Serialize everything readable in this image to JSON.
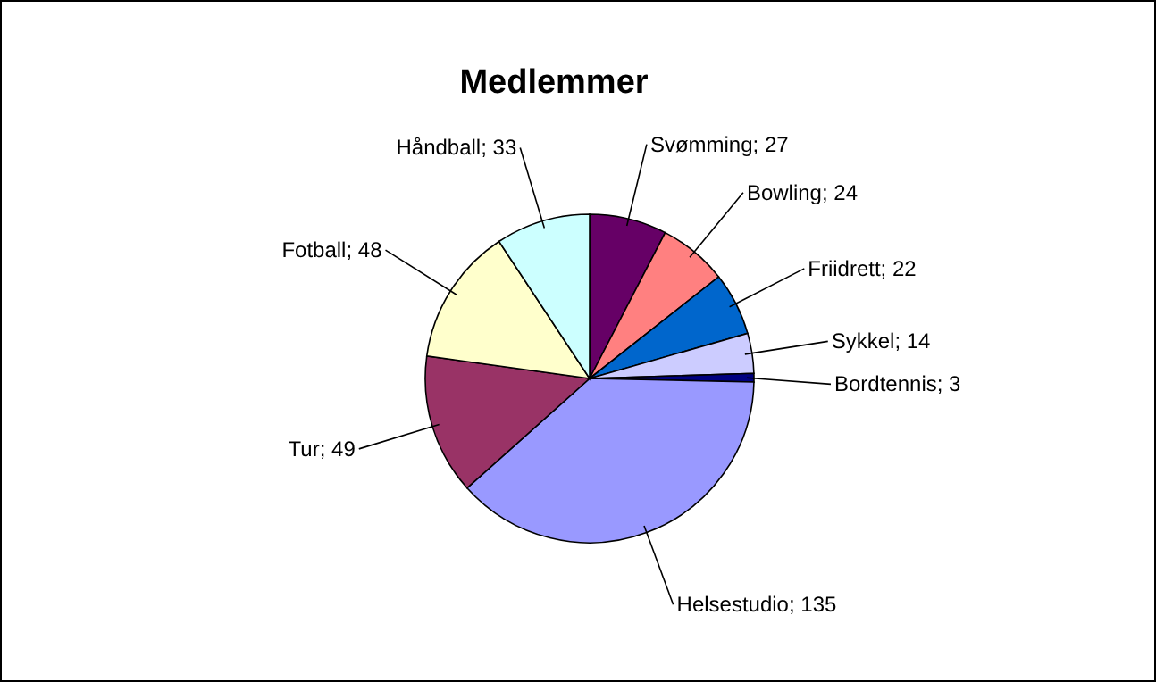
{
  "chart_data": {
    "type": "pie",
    "title": "Medlemmer",
    "categories": [
      "Svømming; 27",
      "Bowling; 24",
      "Friidrett; 22",
      "Sykkel; 14",
      "Bordtennis; 3",
      "Helsestudio; 135",
      "Tur; 49",
      "Fotball; 48",
      "Håndball; 33"
    ],
    "values": [
      27,
      24,
      22,
      14,
      3,
      135,
      49,
      48,
      33
    ],
    "colors": [
      "#660066",
      "#ff8080",
      "#0066cc",
      "#ccccff",
      "#000080",
      "#9999ff",
      "#993366",
      "#ffffcc",
      "#ccffff"
    ],
    "legend": false
  }
}
